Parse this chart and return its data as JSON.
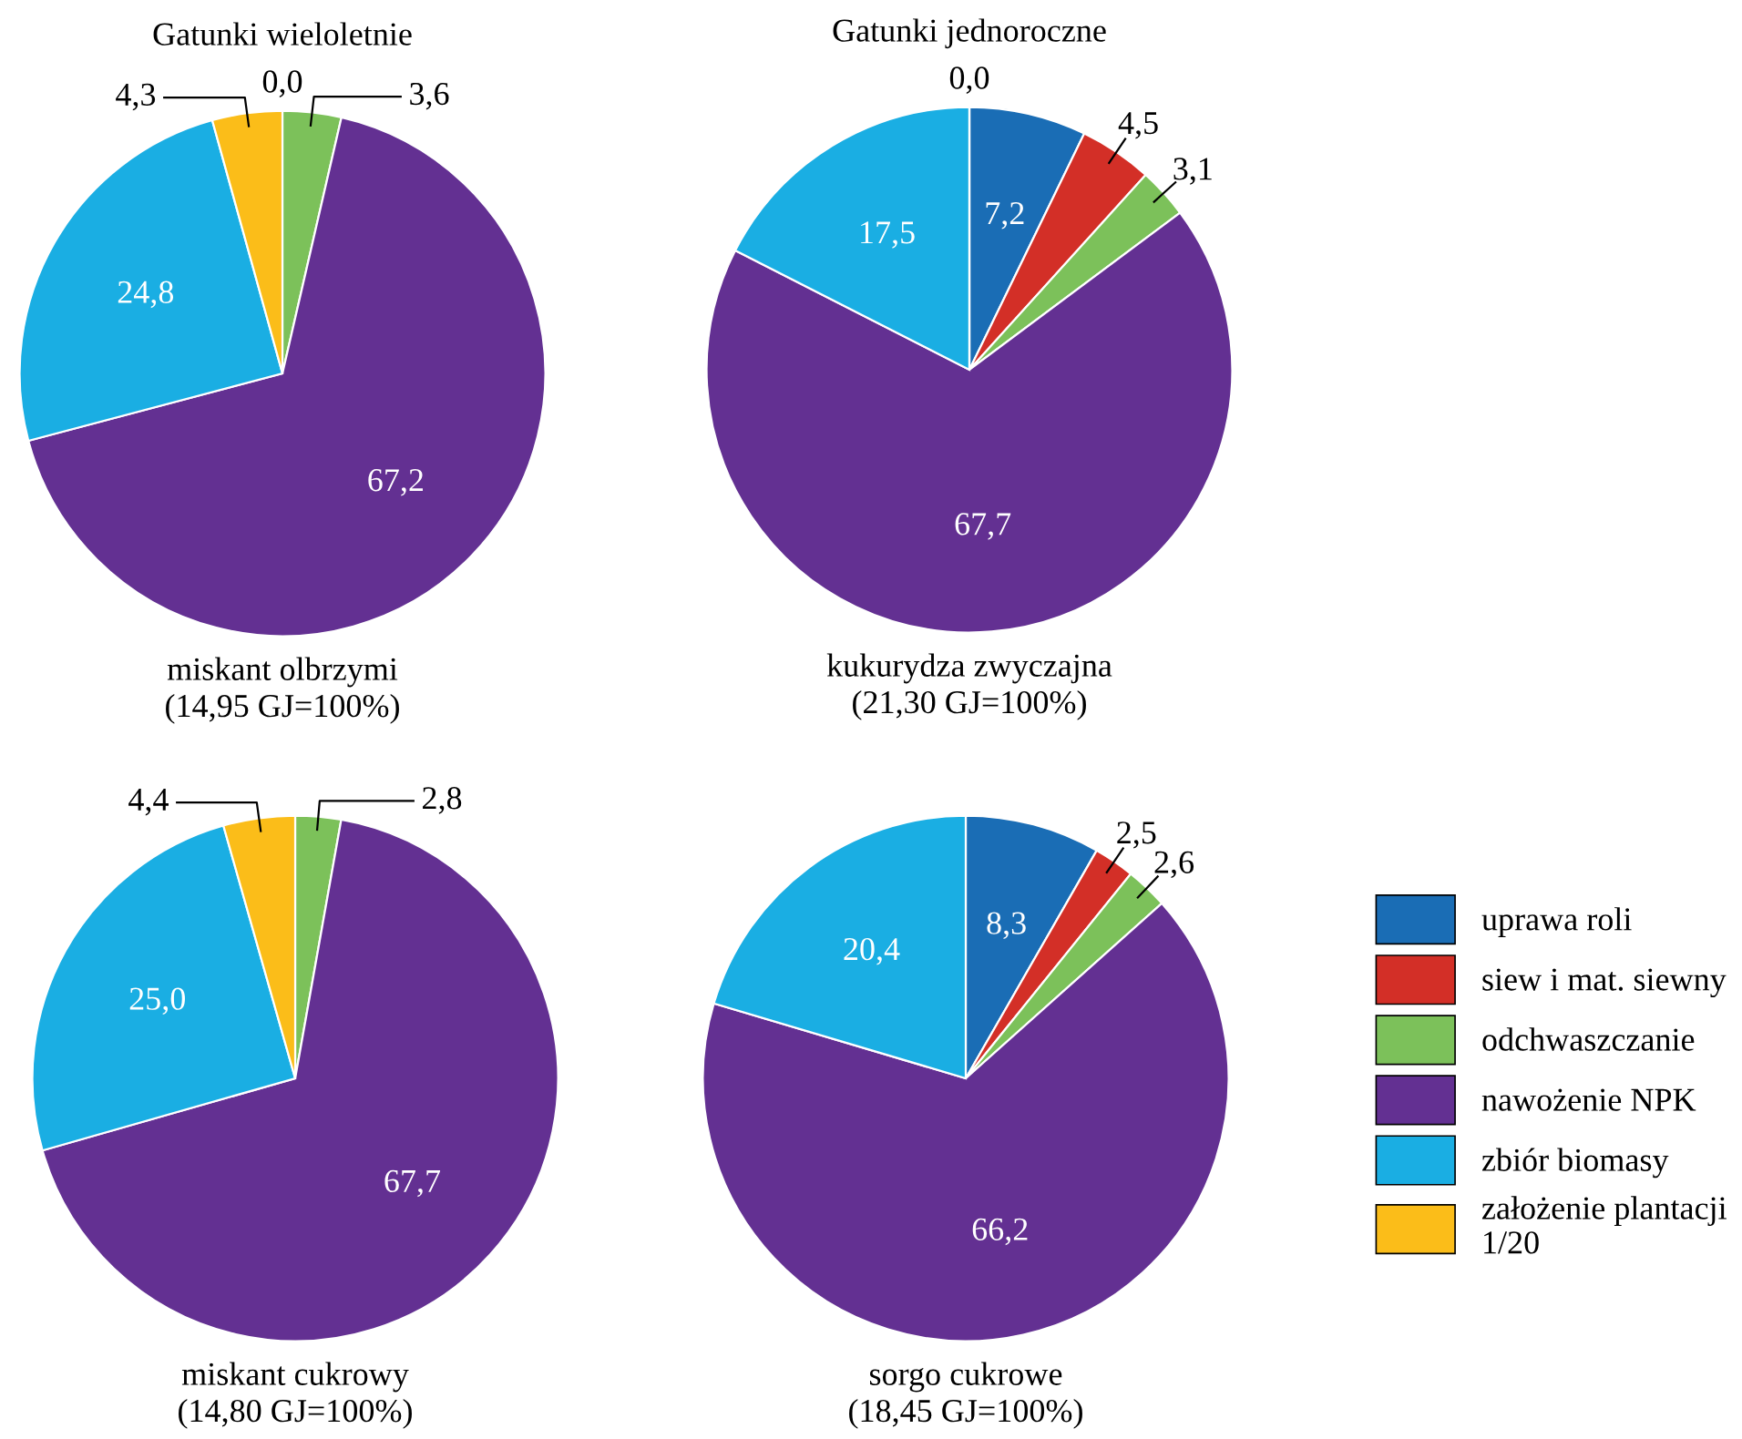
{
  "chart_data": [
    {
      "type": "pie",
      "title": "Gatunki wieloletnie",
      "xlabel": "miskant olbrzymi\n(14,95 GJ=100%)",
      "legend": "bottom right",
      "categories": [
        "uprawa roli",
        "siew i mat. siewny",
        "odchwaszczanie",
        "nawożenie NPK",
        "zbiór biomasy",
        "założenie plantacji\n1/20"
      ],
      "values": [
        0.0,
        null,
        3.6,
        67.2,
        24.8,
        4.3
      ],
      "value_labels": [
        "0,0",
        null,
        "3,6",
        "67,2",
        "24,8",
        "4,3"
      ],
      "colors": [
        "#1a6db5",
        "#d32f27",
        "#7cc15a",
        "#633092",
        "#1aaee3",
        "#fbbd19"
      ]
    },
    {
      "type": "pie",
      "title": "Gatunki jednoroczne",
      "xlabel": "kukurydza zwyczajna\n(21,30 GJ=100%)",
      "categories": [
        null,
        null,
        null,
        null,
        null,
        null
      ],
      "values": [
        7.2,
        4.5,
        3.1,
        67.7,
        17.5,
        0.0
      ],
      "value_labels": [
        "7,2",
        "4,5",
        "3,1",
        "67,7",
        "17,5",
        "0,0"
      ],
      "colors": [
        "#1a6db5",
        "#d32f27",
        "#7cc15a",
        "#633092",
        "#1aaee3",
        "#fbbd19"
      ]
    },
    {
      "type": "pie",
      "xlabel": "miskant cukrowy\n(14,80 GJ=100%)",
      "categories": [
        null,
        null,
        null,
        null,
        null,
        null
      ],
      "values": [
        null,
        null,
        2.8,
        67.7,
        25.0,
        4.4
      ],
      "value_labels": [
        null,
        null,
        "2,8",
        "67,7",
        "25,0",
        "4,4"
      ],
      "colors": [
        "#1a6db5",
        "#d32f27",
        "#7cc15a",
        "#633092",
        "#1aaee3",
        "#fbbd19"
      ]
    },
    {
      "type": "pie",
      "xlabel": "sorgo cukrowe\n(18,45 GJ=100%)",
      "categories": [
        null,
        null,
        null,
        null,
        null,
        null
      ],
      "values": [
        8.3,
        2.5,
        2.6,
        66.2,
        20.4,
        null
      ],
      "value_labels": [
        "8,3",
        "2,5",
        "2,6",
        "66,2",
        "20,4",
        null
      ],
      "colors": [
        "#1a6db5",
        "#d32f27",
        "#7cc15a",
        "#633092",
        "#1aaee3",
        "#fbbd19"
      ]
    }
  ]
}
